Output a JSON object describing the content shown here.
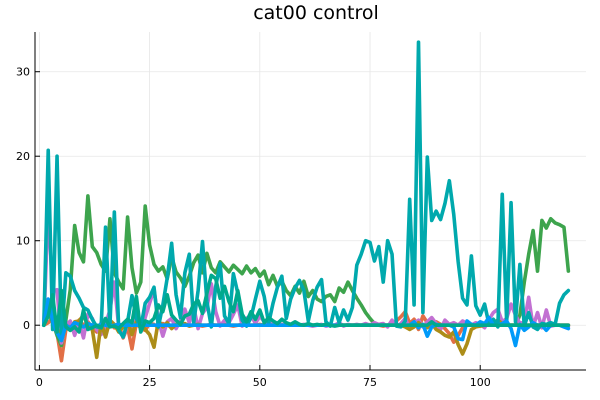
{
  "chart_data": {
    "type": "line",
    "title": "cat00 control",
    "xlabel": "",
    "ylabel": "",
    "xlim": [
      -1,
      124
    ],
    "ylim": [
      -5.3,
      34.7
    ],
    "xticks": [
      0,
      25,
      50,
      75,
      100
    ],
    "yticks": [
      0,
      10,
      20,
      30
    ],
    "grid": true,
    "legend": "none",
    "x": [
      1,
      2,
      3,
      4,
      5,
      6,
      7,
      8,
      9,
      10,
      11,
      12,
      13,
      14,
      15,
      16,
      17,
      18,
      19,
      20,
      21,
      22,
      23,
      24,
      25,
      26,
      27,
      28,
      29,
      30,
      31,
      32,
      33,
      34,
      35,
      36,
      37,
      38,
      39,
      40,
      41,
      42,
      43,
      44,
      45,
      46,
      47,
      48,
      49,
      50,
      51,
      52,
      53,
      54,
      55,
      56,
      57,
      58,
      59,
      60,
      61,
      62,
      63,
      64,
      65,
      66,
      67,
      68,
      69,
      70,
      71,
      72,
      73,
      74,
      75,
      76,
      77,
      78,
      79,
      80,
      81,
      82,
      83,
      84,
      85,
      86,
      87,
      88,
      89,
      90,
      91,
      92,
      93,
      94,
      95,
      96,
      97,
      98,
      99,
      100,
      101,
      102,
      103,
      104,
      105,
      106,
      107,
      108,
      109,
      110,
      111,
      112,
      113,
      114,
      115,
      116,
      117,
      118,
      119,
      120
    ],
    "series": [
      {
        "color": "#e26f46",
        "values": [
          0,
          0.3,
          0.8,
          -0.9,
          -4.2,
          -0.5,
          0.2,
          -0.5,
          0.6,
          0,
          0.4,
          -0.3,
          -0.8,
          0.2,
          -0.6,
          0.4,
          -0.3,
          0.1,
          -1.5,
          -0.2,
          -2.8,
          0.3,
          -0.4,
          -0.6,
          0.2,
          0.1,
          -0.3,
          0.2,
          0,
          -0.2,
          0.1,
          0,
          0.1,
          -0.1,
          0.1,
          0,
          -0.1,
          0,
          0.1,
          0,
          0,
          0.1,
          0,
          -0.1,
          0,
          0.1,
          0,
          0,
          0,
          0.1,
          0,
          0,
          0,
          0,
          0.1,
          0,
          0,
          0,
          0,
          0,
          0,
          0,
          0,
          0,
          0,
          0,
          0,
          0,
          0,
          0,
          0,
          0,
          0,
          0,
          0,
          0,
          0,
          -0.1,
          0,
          0.2,
          0.5,
          1,
          1.6,
          0.2,
          0.7,
          -0.5,
          1.1,
          0.3,
          0,
          0.4,
          0.1,
          -0.4,
          -1,
          -2,
          -1.2,
          -0.3,
          0.2,
          0,
          0.1,
          0,
          0,
          0,
          0,
          0,
          0,
          0,
          0,
          0,
          0,
          0,
          0,
          0,
          0,
          0,
          0,
          0,
          0,
          0,
          0,
          0
        ]
      },
      {
        "color": "#3da44d",
        "values": [
          0,
          1.5,
          0.4,
          -1.2,
          -2.4,
          0.6,
          4.2,
          11.8,
          8.6,
          7.5,
          15.3,
          9.3,
          8.6,
          7.2,
          6.4,
          12.6,
          6.2,
          5.1,
          4.3,
          12.8,
          6.8,
          3.8,
          5.1,
          14.1,
          9.5,
          7.2,
          6.4,
          6.9,
          5.5,
          8.1,
          6.3,
          5.6,
          4.6,
          5.8,
          7.4,
          8.3,
          6.2,
          8.5,
          6.8,
          6.2,
          7.5,
          6.9,
          6.3,
          7.1,
          6.6,
          6.1,
          7.0,
          6.2,
          6.7,
          5.8,
          6.4,
          4.8,
          5.9,
          4.6,
          5.2,
          4.1,
          3.5,
          4.6,
          3.8,
          5.2,
          3.4,
          4.1,
          3.1,
          2.8,
          3.4,
          3.6,
          2.8,
          4.4,
          3.9,
          5.1,
          4.1,
          3.2,
          2.4,
          1.5,
          0.8,
          0.2,
          0,
          0,
          0,
          0,
          0,
          0,
          0,
          0,
          0,
          0,
          0,
          0,
          0,
          0,
          0,
          0,
          0,
          0,
          0,
          0,
          0,
          0,
          0,
          0,
          0,
          0,
          0,
          0,
          0,
          0,
          0,
          0,
          1.2,
          5.1,
          8.4,
          11.2,
          6.4,
          12.4,
          11.5,
          12.6,
          12.1,
          11.9,
          11.6,
          6.4
        ]
      },
      {
        "color": "#c271d2",
        "values": [
          0,
          14,
          4,
          4.2,
          -2.1,
          0,
          0.5,
          -1.2,
          0.4,
          -1.5,
          1.3,
          0.8,
          -0.5,
          -1.1,
          0.1,
          1.8,
          5.1,
          -0.3,
          -1.4,
          0.1,
          -0.8,
          2.3,
          -0.6,
          0.9,
          2.6,
          4.2,
          0.6,
          -1.3,
          0.4,
          0.8,
          -0.4,
          0.5,
          1.9,
          0.3,
          2.2,
          -0.4,
          1.4,
          2.1,
          4.9,
          1.6,
          -0.1,
          0.6,
          0.3,
          1.3,
          2.4,
          -0.1,
          0.8,
          1.2,
          0.2,
          1.1,
          0.4,
          0,
          0.3,
          0,
          0.1,
          0,
          0,
          0,
          0,
          0.1,
          0,
          -0.1,
          0,
          0.1,
          -0.1,
          0,
          0,
          0.3,
          -0.1,
          0.1,
          0,
          0.1,
          0,
          0.2,
          0,
          0.3,
          0.1,
          0.2,
          -0.2,
          0.6,
          -0.1,
          0.2,
          0.8,
          -0.4,
          0.3,
          0.6,
          -0.2,
          0.4,
          0.9,
          0.2,
          -0.5,
          0.6,
          0.1,
          0.3,
          0,
          0.5,
          0.2,
          0,
          0.3,
          0.1,
          -0.3,
          0.7,
          1.5,
          1.9,
          0.4,
          0.8,
          2.5,
          1.2,
          0.2,
          0.4,
          3.3,
          -0.2,
          1.5,
          -0.3,
          1.8,
          -0.1,
          0,
          0,
          -0.1,
          -0.2
        ]
      },
      {
        "color": "#ac8d18",
        "values": [
          0,
          1.4,
          0.9,
          -0.4,
          -1.8,
          -0.2,
          -0.6,
          0.4,
          0.5,
          1.2,
          -0.1,
          -0.5,
          -3.8,
          0.3,
          -1.4,
          0.6,
          0.1,
          -0.8,
          -0.2,
          0.5,
          -1.1,
          0.4,
          0.2,
          -0.5,
          -1.1,
          -2.6,
          0.6,
          -0.2,
          0.3,
          -0.4,
          0.1,
          0,
          0.2,
          -0.1,
          0,
          0.1,
          0,
          0,
          0,
          0,
          0,
          0,
          0,
          0,
          0,
          0,
          0,
          0,
          0,
          0,
          0,
          0,
          0,
          0,
          0,
          0,
          0,
          0,
          0,
          0,
          0,
          0,
          0,
          0,
          0,
          0,
          0,
          0,
          0,
          0,
          0,
          0,
          0,
          0,
          0,
          0,
          0,
          0,
          0,
          0,
          0,
          0,
          -0.2,
          -0.5,
          -0.2,
          0.3,
          -0.1,
          -0.3,
          0.2,
          -0.5,
          -0.8,
          -1.2,
          -1.4,
          -0.8,
          -2.3,
          -3.4,
          -2.2,
          -0.5,
          -0.2,
          -0.1,
          0,
          0,
          0.3,
          0.6,
          0.2,
          0,
          0,
          0,
          0,
          0,
          0,
          0,
          0,
          0,
          0,
          0,
          0,
          0,
          0,
          0
        ]
      },
      {
        "color": "#00a9ad",
        "values": [
          0,
          20.7,
          -0.5,
          20,
          -1.4,
          6.2,
          5.8,
          4.1,
          3.2,
          2.1,
          1.8,
          0.7,
          -0.2,
          -0.3,
          11.6,
          -0.1,
          13.4,
          -0.6,
          -1.4,
          0.4,
          3.5,
          0.8,
          -0.3,
          2.6,
          3.3,
          4.5,
          -0.2,
          2.4,
          5.6,
          9.7,
          3.6,
          0.9,
          6.2,
          8.4,
          0.3,
          4.1,
          9.9,
          2.8,
          -0.2,
          4.6,
          7.3,
          1.1,
          0.2,
          6.1,
          3.8,
          0.6,
          -0.1,
          0.9,
          3.1,
          5.2,
          3.4,
          0.2,
          2.6,
          4.5,
          5.8,
          0.8,
          3.1,
          4.4,
          5.3,
          4.1,
          0.5,
          2.9,
          4.5,
          5.4,
          0.4,
          -0.1,
          2.1,
          0.3,
          1.8,
          0.6,
          2.1,
          7.1,
          8.4,
          10.0,
          9.8,
          7.6,
          9.3,
          5.1,
          10.0,
          8.4,
          -0.1,
          -0.2,
          0.5,
          14.9,
          2.4,
          33.5,
          1.5,
          19.9,
          12.4,
          13.5,
          12.5,
          14.4,
          17.1,
          13.1,
          7.5,
          3.2,
          2.4,
          8.2,
          2.3,
          1.2,
          2.5,
          0.1,
          0.7,
          -0.2,
          15.5,
          0.3,
          14.5,
          0.4,
          7.2,
          -0.1,
          1.5,
          -0.2,
          -0.5,
          0.2,
          0.1,
          0.3,
          0.1,
          2.6,
          3.6,
          4.1
        ]
      },
      {
        "color": "#009af9",
        "values": [
          0,
          3.1,
          0.5,
          -0.9,
          -1.8,
          0,
          -0.3,
          0.3,
          0.1,
          -0.2,
          0.2,
          0,
          -0.1,
          0.1,
          0,
          -0.1,
          0,
          0.1,
          0,
          0,
          0,
          0,
          0,
          0,
          0,
          0,
          0,
          0,
          0,
          0,
          0,
          0,
          0,
          0,
          0,
          0,
          0,
          0,
          0,
          0,
          0,
          0,
          0,
          0,
          0,
          0,
          0,
          0,
          0,
          0,
          0,
          0,
          0,
          0,
          0,
          0,
          0,
          0,
          0,
          0,
          0,
          0,
          0,
          0,
          0,
          0,
          0,
          0,
          0,
          0,
          0,
          0,
          0,
          0,
          0,
          0,
          0,
          0,
          0,
          0,
          0,
          0,
          0,
          0,
          0.4,
          -0.3,
          0.1,
          -1.3,
          -0.2,
          0.1,
          0,
          0,
          0,
          -0.2,
          -1.6,
          -1.7,
          0.5,
          0.1,
          0,
          0.4,
          0.2,
          0.9,
          0,
          0,
          0.2,
          0.5,
          -0.4,
          -2.4,
          0.1,
          -0.6,
          -0.2,
          0.3,
          0,
          0,
          -0.6,
          0,
          0,
          0,
          -0.2,
          -0.4
        ]
      },
      {
        "color": "#00a98d",
        "values": [
          0,
          1.1,
          3.6,
          -0.8,
          4.1,
          -0.2,
          -0.6,
          -0.2,
          -0.8,
          1.8,
          -0.5,
          -0.3,
          0,
          -0.3,
          0.8,
          -0.2,
          -0.1,
          -0.4,
          0.2,
          0.7,
          0.3,
          3.4,
          -0.8,
          0.5,
          0.3,
          0.8,
          2.4,
          1.6,
          3.6,
          1.2,
          0.6,
          0.1,
          1.1,
          1.3,
          2.5,
          2.9,
          1.4,
          3.8,
          5.9,
          5.5,
          3.2,
          4.6,
          2.8,
          1.6,
          4.1,
          1.3,
          0.4,
          1.6,
          0.7,
          1.8,
          0.3,
          0.9,
          0.5,
          0.2,
          0.7,
          0.3,
          0.1,
          0.4,
          0.1,
          0,
          0.2,
          0,
          0.1,
          0,
          0.1,
          0,
          -0.1,
          0,
          0,
          0,
          0,
          0,
          0,
          0,
          0,
          0,
          0,
          0,
          0,
          0,
          0,
          0,
          0,
          0,
          0,
          0,
          0,
          0,
          0.4,
          0,
          0,
          0,
          0,
          0,
          0,
          0,
          0,
          0,
          0,
          0,
          0,
          0,
          0,
          0,
          0,
          0,
          0,
          0,
          0,
          0,
          0,
          0,
          0,
          0,
          0,
          0,
          0,
          0,
          0,
          0
        ]
      }
    ]
  }
}
